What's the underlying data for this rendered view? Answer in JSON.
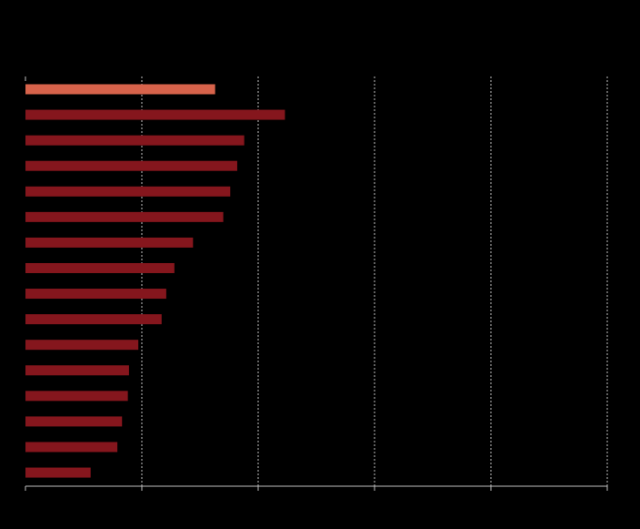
{
  "chart_data": {
    "type": "bar",
    "orientation": "horizontal",
    "title": "",
    "xlabel": "",
    "ylabel": "",
    "xlim": [
      0,
      5
    ],
    "xticks": [
      0,
      1,
      2,
      3,
      4,
      5
    ],
    "grid": true,
    "categories": [
      "",
      "",
      "",
      "",
      "",
      "",
      "",
      "",
      "",
      "",
      "",
      "",
      "",
      "",
      "",
      ""
    ],
    "values": [
      1.63,
      2.23,
      1.88,
      1.82,
      1.76,
      1.7,
      1.44,
      1.28,
      1.21,
      1.17,
      0.97,
      0.89,
      0.88,
      0.83,
      0.79,
      0.56
    ],
    "highlight_index": 0
  },
  "colors": {
    "background": "#000000",
    "highlight_bar": "#d7634b",
    "bar": "#85161d",
    "grid": "#bfbfbf",
    "axis": "#bfbfbf"
  }
}
